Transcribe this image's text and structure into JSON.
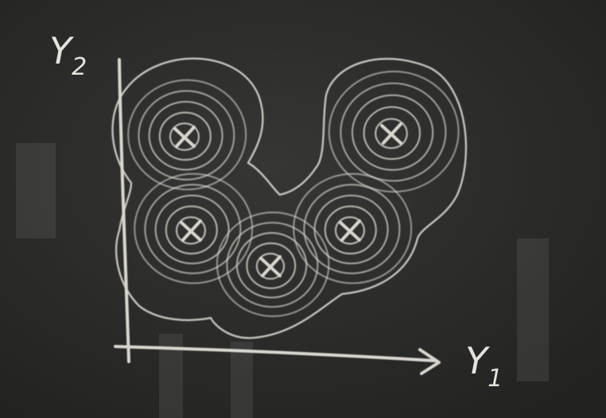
{
  "y_axis_label": {
    "letter": "Y",
    "subscript": "2"
  },
  "x_axis_label": {
    "letter": "Y",
    "subscript": "1"
  }
}
